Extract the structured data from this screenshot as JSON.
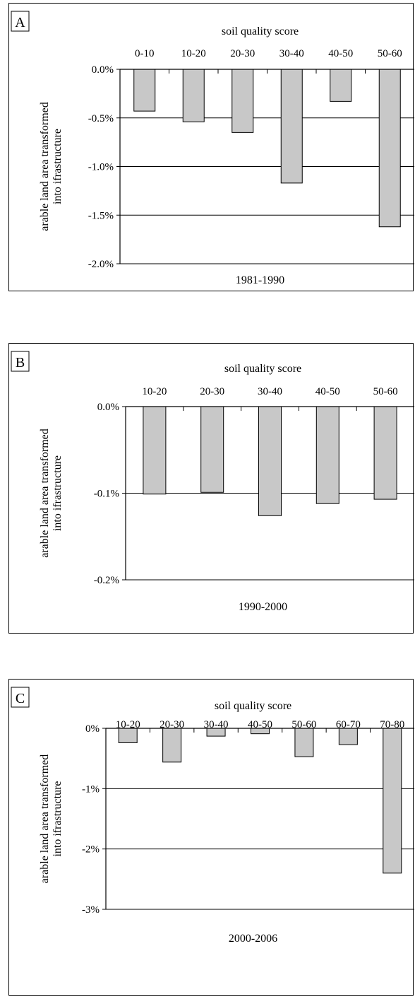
{
  "chart_data": [
    {
      "type": "bar",
      "panel_label": "A",
      "title": "soil quality score",
      "xlabel": "1981-1990",
      "ylabel": "arable land area transformed into ifrastructure",
      "categories": [
        "0-10",
        "10-20",
        "20-30",
        "30-40",
        "40-50",
        "50-60"
      ],
      "values": [
        -0.43,
        -0.54,
        -0.65,
        -1.17,
        -0.33,
        -1.62
      ],
      "ylim": [
        -2.0,
        0.0
      ],
      "yticks": [
        0.0,
        -0.5,
        -1.0,
        -1.5,
        -2.0
      ],
      "ytick_labels": [
        "0.0%",
        "-0.5%",
        "-1.0%",
        "-1.5%",
        "-2.0%"
      ],
      "grid": true,
      "bar_color": "#c8c8c8"
    },
    {
      "type": "bar",
      "panel_label": "B",
      "title": "soil quality score",
      "xlabel": "1990-2000",
      "ylabel": "arable land area transformed into ifrastructure",
      "categories": [
        "10-20",
        "20-30",
        "30-40",
        "40-50",
        "50-60"
      ],
      "values": [
        -0.101,
        -0.099,
        -0.126,
        -0.112,
        -0.107
      ],
      "ylim": [
        -0.2,
        0.0
      ],
      "yticks": [
        0.0,
        -0.1,
        -0.2
      ],
      "ytick_labels": [
        "0.0%",
        "-0.1%",
        "-0.2%"
      ],
      "grid": true,
      "bar_color": "#c8c8c8"
    },
    {
      "type": "bar",
      "panel_label": "C",
      "title": "soil quality score",
      "xlabel": "2000-2006",
      "ylabel": "arable land area transformed into ifrastructure",
      "categories": [
        "10-20",
        "20-30",
        "30-40",
        "40-50",
        "50-60",
        "60-70",
        "70-80"
      ],
      "values": [
        -0.24,
        -0.56,
        -0.13,
        -0.09,
        -0.47,
        -0.27,
        -2.4
      ],
      "ylim": [
        -3,
        0
      ],
      "yticks": [
        0,
        -1,
        -2,
        -3
      ],
      "ytick_labels": [
        "0%",
        "-1%",
        "-2%",
        "-3%"
      ],
      "grid": true,
      "bar_color": "#c8c8c8"
    }
  ]
}
